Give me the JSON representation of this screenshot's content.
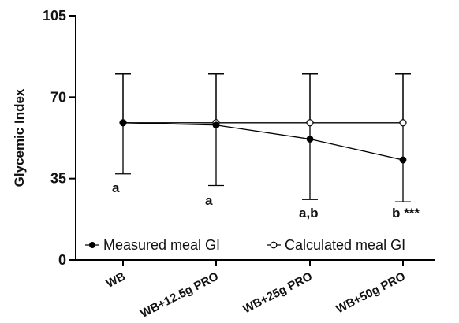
{
  "chart_data": {
    "type": "line",
    "title": "",
    "ylabel": "Glycemic Index",
    "xlabel": "",
    "categories": [
      "WB",
      "WB+12.5g PRO",
      "WB+25g PRO",
      "WB+50g PRO"
    ],
    "ylim": [
      0,
      105
    ],
    "yticks": [
      0,
      35,
      70,
      105
    ],
    "series": [
      {
        "name": "Measured meal GI",
        "marker": "filled-circle",
        "color": "#000000",
        "values": [
          59,
          58,
          52,
          43
        ],
        "error_low": [
          37,
          32,
          26,
          25
        ],
        "error_high": [
          80,
          80,
          80,
          80
        ]
      },
      {
        "name": "Calculated meal GI",
        "marker": "open-circle",
        "color": "#000000",
        "values": [
          59,
          59,
          59,
          59
        ],
        "error_low": [
          59,
          59,
          59,
          59
        ],
        "error_high": [
          80,
          80,
          80,
          80
        ]
      }
    ],
    "annotations": [
      "a",
      "a",
      "a,b",
      "b ***"
    ],
    "legend_position": "bottom-inside",
    "grid": false
  }
}
